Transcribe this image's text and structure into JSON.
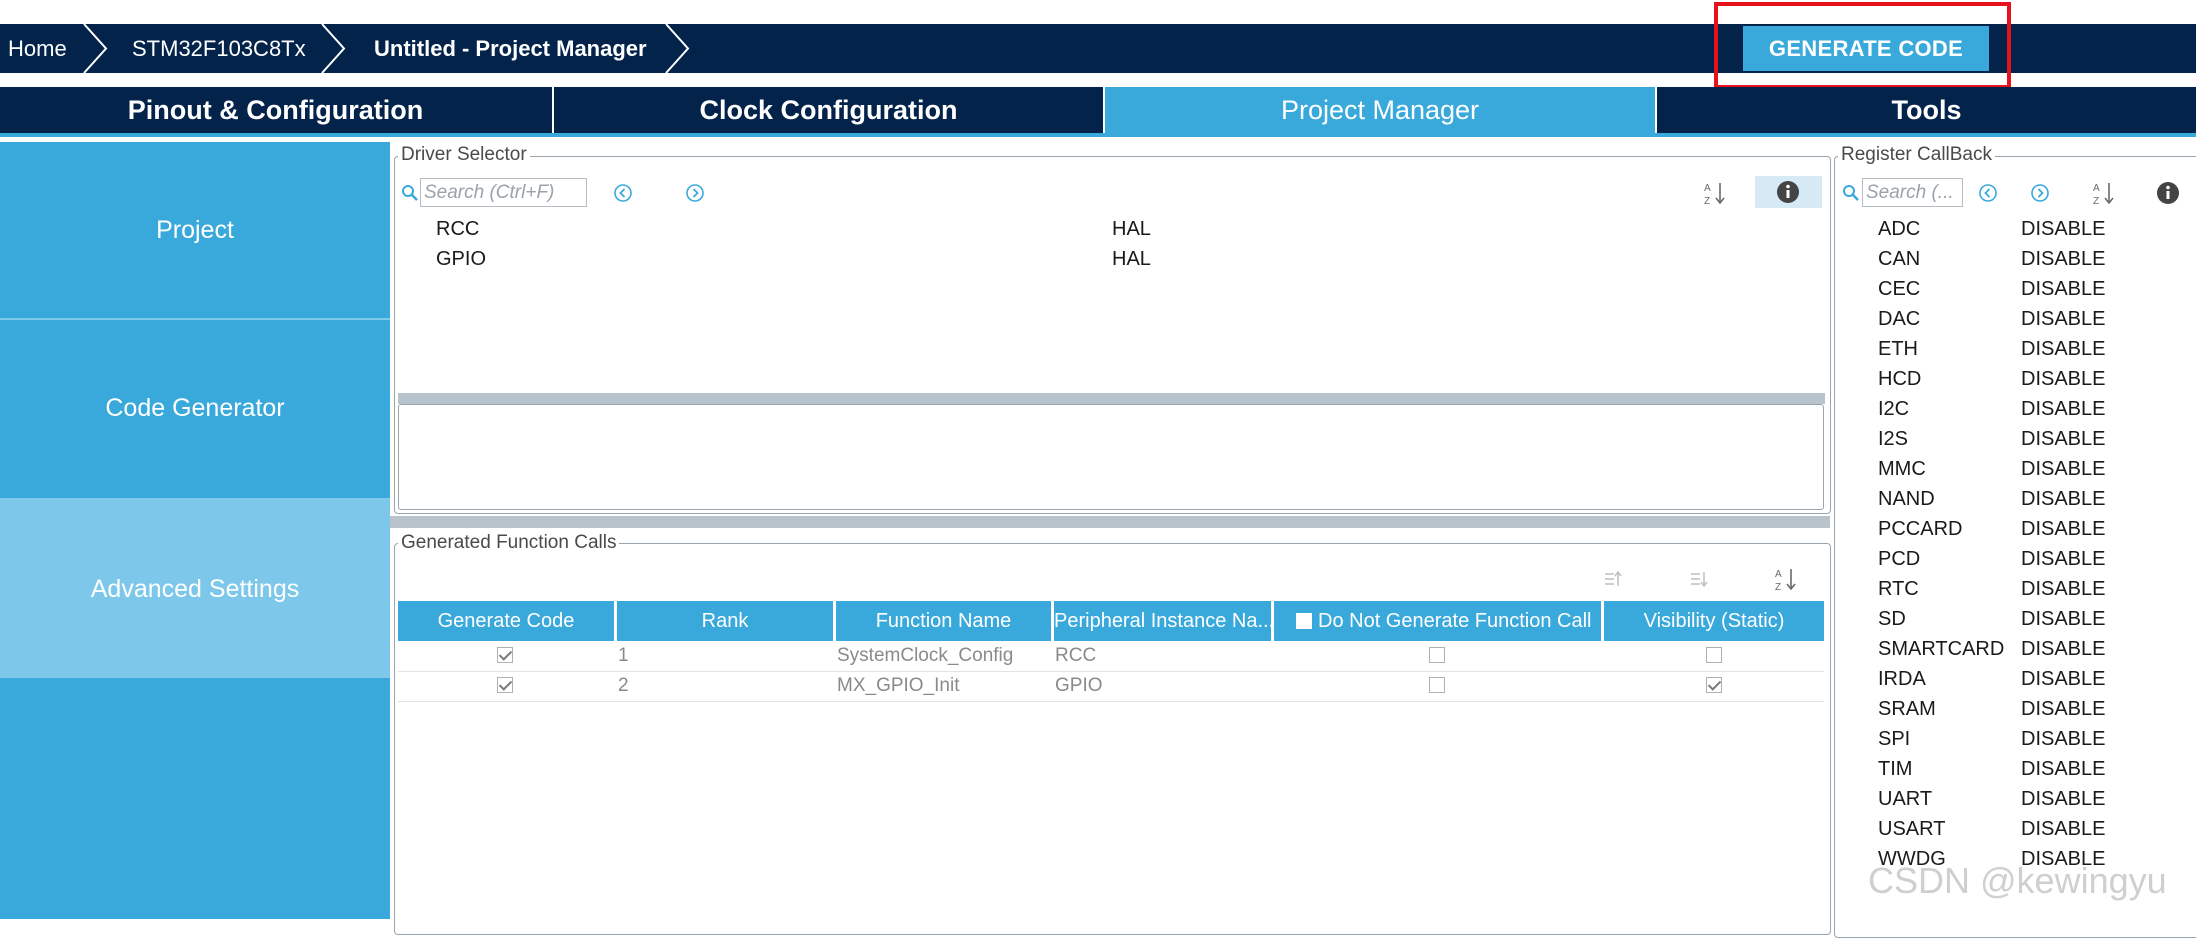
{
  "breadcrumb": {
    "home": "Home",
    "device": "STM32F103C8Tx",
    "project": "Untitled - Project Manager"
  },
  "generate_button": "GENERATE CODE",
  "tabs": [
    {
      "label": "Pinout & Configuration"
    },
    {
      "label": "Clock Configuration"
    },
    {
      "label": "Project Manager"
    },
    {
      "label": "Tools"
    }
  ],
  "nav": {
    "project": "Project",
    "code_generator": "Code Generator",
    "advanced_settings": "Advanced Settings"
  },
  "driver_selector": {
    "title": "Driver Selector",
    "search_placeholder": "Search (Ctrl+F)",
    "rows": [
      {
        "name": "RCC",
        "driver": "HAL"
      },
      {
        "name": "GPIO",
        "driver": "HAL"
      }
    ]
  },
  "function_calls": {
    "title": "Generated Function Calls",
    "headers": {
      "generate": "Generate Code",
      "rank": "Rank",
      "function": "Function Name",
      "peripheral": "Peripheral Instance Na...",
      "no_call": "Do Not Generate Function Call",
      "visibility": "Visibility (Static)"
    },
    "rows": [
      {
        "generate": true,
        "rank": "1",
        "function": "SystemClock_Config",
        "peripheral": "RCC",
        "no_call": false,
        "visibility": false
      },
      {
        "generate": true,
        "rank": "2",
        "function": "MX_GPIO_Init",
        "peripheral": "GPIO",
        "no_call": false,
        "visibility": true
      }
    ]
  },
  "register_callback": {
    "title": "Register CallBack",
    "search_placeholder": "Search (...",
    "rows": [
      {
        "name": "ADC",
        "value": "DISABLE"
      },
      {
        "name": "CAN",
        "value": "DISABLE"
      },
      {
        "name": "CEC",
        "value": "DISABLE"
      },
      {
        "name": "DAC",
        "value": "DISABLE"
      },
      {
        "name": "ETH",
        "value": "DISABLE"
      },
      {
        "name": "HCD",
        "value": "DISABLE"
      },
      {
        "name": "I2C",
        "value": "DISABLE"
      },
      {
        "name": "I2S",
        "value": "DISABLE"
      },
      {
        "name": "MMC",
        "value": "DISABLE"
      },
      {
        "name": "NAND",
        "value": "DISABLE"
      },
      {
        "name": "PCCARD",
        "value": "DISABLE"
      },
      {
        "name": "PCD",
        "value": "DISABLE"
      },
      {
        "name": "RTC",
        "value": "DISABLE"
      },
      {
        "name": "SD",
        "value": "DISABLE"
      },
      {
        "name": "SMARTCARD",
        "value": "DISABLE"
      },
      {
        "name": "IRDA",
        "value": "DISABLE"
      },
      {
        "name": "SRAM",
        "value": "DISABLE"
      },
      {
        "name": "SPI",
        "value": "DISABLE"
      },
      {
        "name": "TIM",
        "value": "DISABLE"
      },
      {
        "name": "UART",
        "value": "DISABLE"
      },
      {
        "name": "USART",
        "value": "DISABLE"
      },
      {
        "name": "WWDG",
        "value": "DISABLE"
      }
    ]
  },
  "watermark": "CSDN @kewingyu",
  "colors": {
    "navy": "#03234b",
    "accent": "#39a9dc",
    "highlight_box": "#e8121d"
  }
}
